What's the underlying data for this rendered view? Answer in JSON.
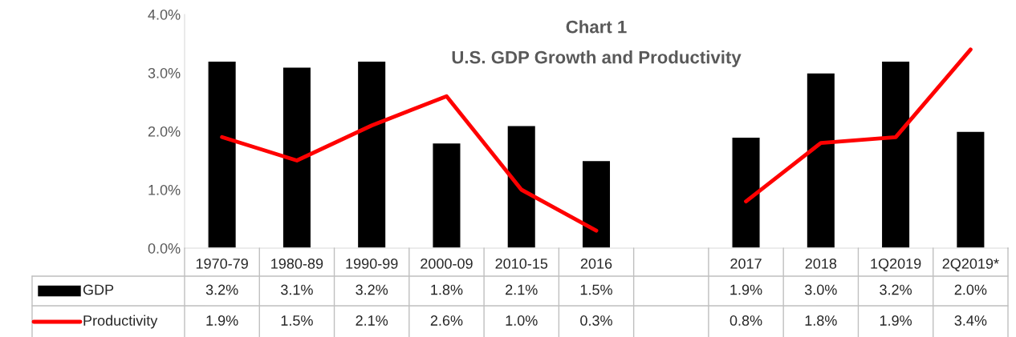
{
  "chart_data": {
    "type": "bar",
    "title": "Chart 1",
    "subtitle": "U.S. GDP Growth and Productivity",
    "categories": [
      "1970-79",
      "1980-89",
      "1990-99",
      "2000-09",
      "2010-15",
      "2016",
      null,
      "2017",
      "2018",
      "1Q2019",
      "2Q2019*"
    ],
    "series": [
      {
        "name": "GDP",
        "color": "#000000",
        "values": [
          3.2,
          3.1,
          3.2,
          1.8,
          2.1,
          1.5,
          null,
          1.9,
          3.0,
          3.2,
          2.0
        ],
        "value_labels": [
          "3.2%",
          "3.1%",
          "3.2%",
          "1.8%",
          "2.1%",
          "1.5%",
          null,
          "1.9%",
          "3.0%",
          "3.2%",
          "2.0%"
        ]
      },
      {
        "name": "Productivity",
        "type": "line",
        "color": "#ff0000",
        "values": [
          1.9,
          1.5,
          2.1,
          2.6,
          1.0,
          0.3,
          null,
          0.8,
          1.8,
          1.9,
          3.4
        ],
        "value_labels": [
          "1.9%",
          "1.5%",
          "2.1%",
          "2.6%",
          "1.0%",
          "0.3%",
          null,
          "0.8%",
          "1.8%",
          "1.9%",
          "3.4%"
        ]
      }
    ],
    "ylim": [
      0,
      4
    ],
    "yticks": [
      {
        "value": 0,
        "label": "0.0%"
      },
      {
        "value": 1,
        "label": "1.0%"
      },
      {
        "value": 2,
        "label": "2.0%"
      },
      {
        "value": 3,
        "label": "3.0%"
      },
      {
        "value": 4,
        "label": "4.0%"
      }
    ],
    "grid": false,
    "legend": "bottom",
    "marker": "none",
    "line_style": "solid"
  }
}
